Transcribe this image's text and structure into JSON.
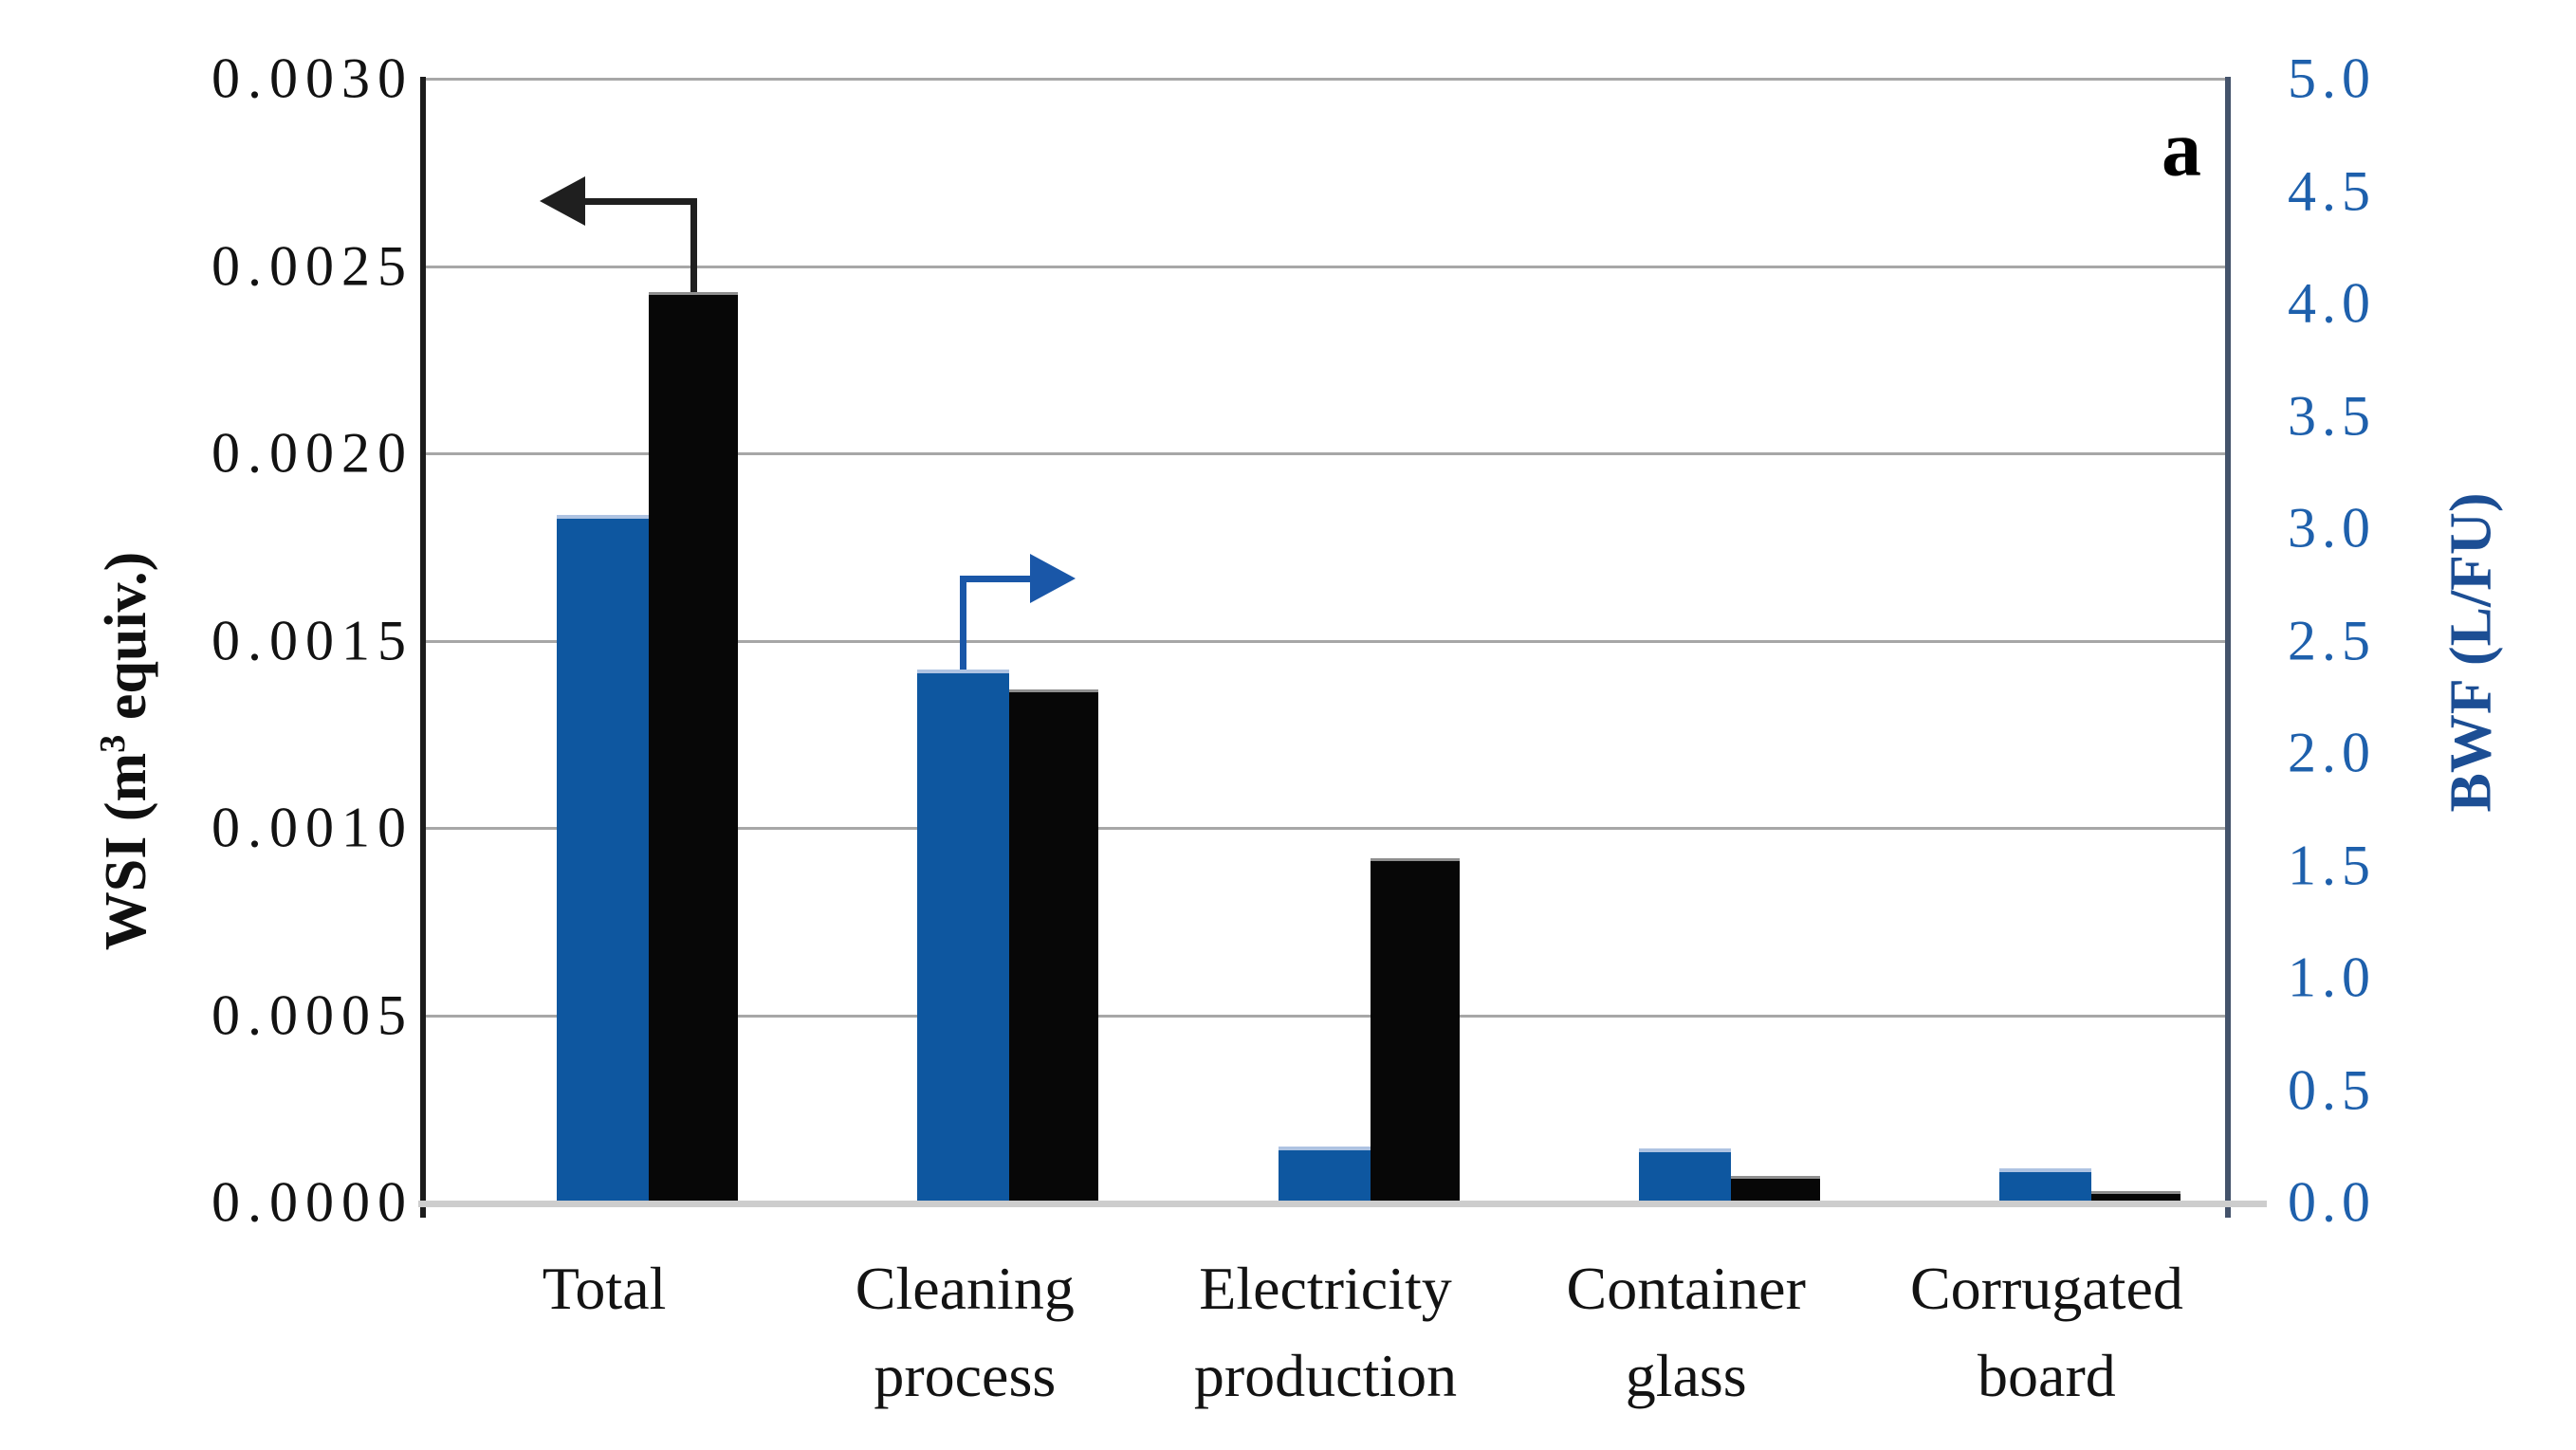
{
  "panel_label": "a",
  "chart_data": {
    "type": "bar",
    "title": "",
    "grid": "horizontal",
    "legend": "none",
    "categories": [
      {
        "label": "Total",
        "lines": [
          "Total"
        ]
      },
      {
        "label": "Cleaning process",
        "lines": [
          "Cleaning",
          "process"
        ]
      },
      {
        "label": "Electricity production",
        "lines": [
          "Electricity",
          "production"
        ]
      },
      {
        "label": "Container glass",
        "lines": [
          "Container",
          "glass"
        ]
      },
      {
        "label": "Corrugated board",
        "lines": [
          "Corrugated",
          "board"
        ]
      }
    ],
    "series": [
      {
        "id": "bwf",
        "name": "BWF",
        "axis": "right",
        "color": "#0e57a0",
        "values": [
          3.06,
          2.37,
          0.25,
          0.24,
          0.15
        ]
      },
      {
        "id": "wsi",
        "name": "WSI",
        "axis": "left",
        "color": "#070707",
        "values": [
          0.00243,
          0.00137,
          0.00092,
          7e-05,
          3e-05
        ]
      }
    ],
    "left_axis": {
      "title_pre": "WSI (m",
      "title_sup": "3",
      "title_post": " equiv.)",
      "min": 0,
      "max": 0.003,
      "tick_values": [
        0.003,
        0.0025,
        0.002,
        0.0015,
        0.001,
        0.0005,
        0.0
      ],
      "tick_labels": [
        "0.0030",
        "0.0025",
        "0.0020",
        "0.0015",
        "0.0010",
        "0.0005",
        "0.0000"
      ],
      "text_color": "#121212"
    },
    "right_axis": {
      "title": "BWF (L/FU)",
      "min": 0,
      "max": 5,
      "tick_values": [
        5.0,
        4.5,
        4.0,
        3.5,
        3.0,
        2.5,
        2.0,
        1.5,
        1.0,
        0.5,
        0.0
      ],
      "tick_labels": [
        "5.0",
        "4.5",
        "4.0",
        "3.5",
        "3.0",
        "2.5",
        "2.0",
        "1.5",
        "1.0",
        "0.5",
        "0.0"
      ],
      "text_color": "#1e60ac"
    },
    "annotations": {
      "arrows": [
        {
          "id": "left-axis-arrow",
          "points_to_axis": "left",
          "series": "wsi",
          "category": 0,
          "direction": "left",
          "color": "#1f1f1f"
        },
        {
          "id": "right-axis-arrow",
          "points_to_axis": "right",
          "series": "bwf",
          "category": 1,
          "direction": "right",
          "color": "#1a57a8"
        }
      ]
    }
  }
}
